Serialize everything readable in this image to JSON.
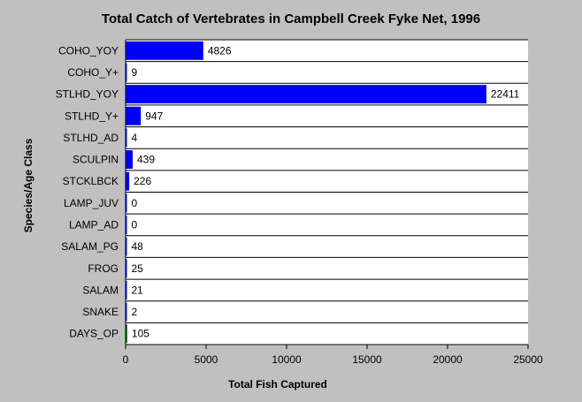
{
  "chart_data": {
    "type": "bar",
    "orientation": "horizontal",
    "title": "Total Catch of Vertebrates in Campbell Creek Fyke Net, 1996",
    "xlabel": "Total Fish Captured",
    "ylabel": "Species/Age Class",
    "categories": [
      "COHO_YOY",
      "COHO_Y+",
      "STLHD_YOY",
      "STLHD_Y+",
      "STLHD_AD",
      "SCULPIN",
      "STCKLBCK",
      "LAMP_JUV",
      "LAMP_AD",
      "SALAM_PG",
      "FROG",
      "SALAM",
      "SNAKE",
      "DAYS_OP"
    ],
    "values": [
      4826,
      9,
      22411,
      947,
      4,
      439,
      226,
      0,
      0,
      48,
      25,
      21,
      2,
      105
    ],
    "value_labels": [
      "4826",
      "9",
      "22411",
      "947",
      "4",
      "439",
      "226",
      "0",
      "0",
      "48",
      "25",
      "21",
      "2",
      "105"
    ],
    "bar_colors": [
      "#0000ff",
      "#0000ff",
      "#0000ff",
      "#0000ff",
      "#0000ff",
      "#0000ff",
      "#0000ff",
      "#0000ff",
      "#0000ff",
      "#0000ff",
      "#0000ff",
      "#0000ff",
      "#0000ff",
      "#008000"
    ],
    "xlim": [
      0,
      25000
    ],
    "xticks": [
      0,
      5000,
      10000,
      15000,
      20000,
      25000
    ],
    "xtick_labels": [
      "0",
      "5000",
      "10000",
      "15000",
      "20000",
      "25000"
    ],
    "grid": "horizontal lines between categories",
    "plot_background": "#ffffff",
    "page_background": "#c0c0c0"
  }
}
